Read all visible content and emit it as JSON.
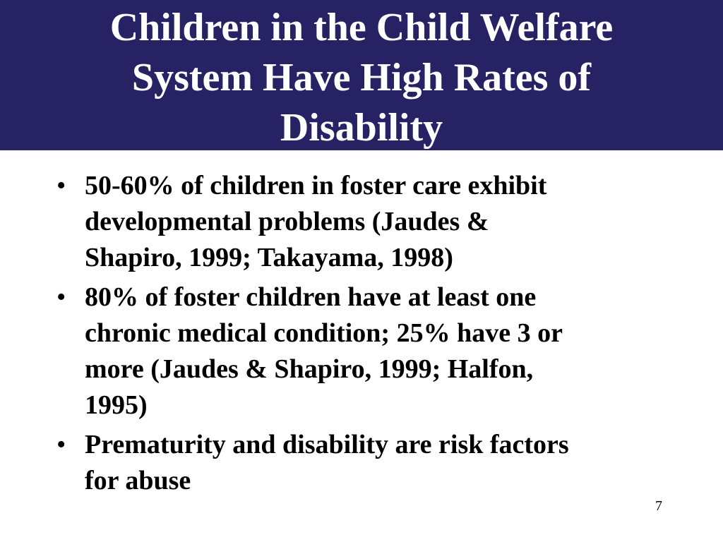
{
  "slide": {
    "title_lines": [
      "Children in the Child Welfare",
      "System Have High Rates of",
      "Disability"
    ],
    "bullets": [
      {
        "marker": "•",
        "lines": [
          "50-60% of children in foster care exhibit",
          "developmental problems (Jaudes &",
          "Shapiro, 1999; Takayama, 1998)"
        ]
      },
      {
        "marker": "•",
        "lines": [
          "80% of foster children have at least one",
          "chronic medical condition; 25% have 3 or",
          "more (Jaudes & Shapiro, 1999; Halfon,",
          "1995)"
        ]
      },
      {
        "marker": "•",
        "lines": [
          "Prematurity and disability are risk factors",
          "for abuse"
        ]
      }
    ],
    "page_number": "7"
  },
  "colors": {
    "title_background": "#272263",
    "title_text": "#ffffff",
    "body_text": "#000000",
    "background": "#ffffff"
  }
}
